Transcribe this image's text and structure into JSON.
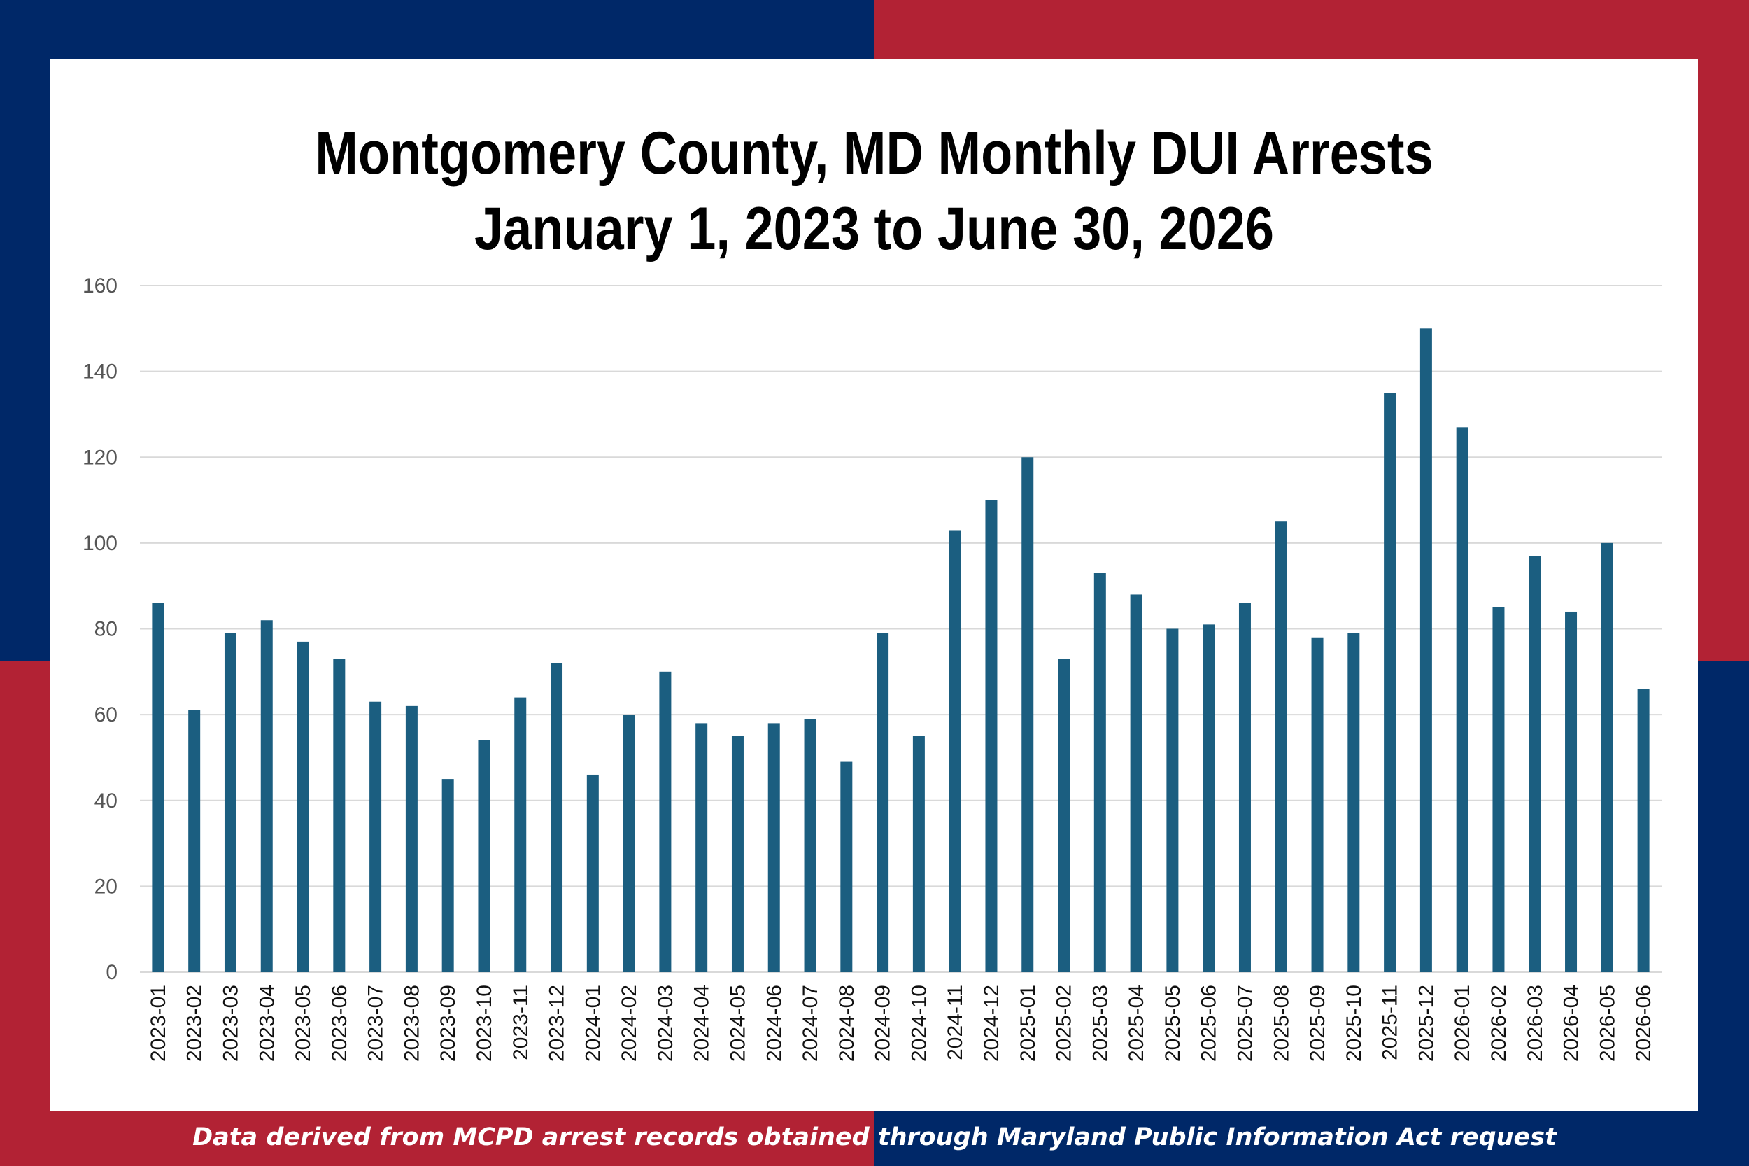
{
  "colors": {
    "navy": "#002868",
    "red": "#B22234",
    "bar": "#1B5E80",
    "grid": "#d9d9d9",
    "panel": "#ffffff"
  },
  "title_lines": [
    "Montgomery County, MD Monthly DUI Arrests",
    "January 1, 2023 to June 30, 2026"
  ],
  "footer": "Data derived from MCPD arrest records obtained through Maryland Public Information Act request",
  "chart_data": {
    "type": "bar",
    "title": "Montgomery County, MD Monthly DUI Arrests January 1, 2023 to June 30, 2026",
    "xlabel": "",
    "ylabel": "",
    "ylim": [
      0,
      160
    ],
    "yticks": [
      0,
      20,
      40,
      60,
      80,
      100,
      120,
      140,
      160
    ],
    "grid": true,
    "legend": "none",
    "categories": [
      "2023-01",
      "2023-02",
      "2023-03",
      "2023-04",
      "2023-05",
      "2023-06",
      "2023-07",
      "2023-08",
      "2023-09",
      "2023-10",
      "2023-11",
      "2023-12",
      "2024-01",
      "2024-02",
      "2024-03",
      "2024-04",
      "2024-05",
      "2024-06",
      "2024-07",
      "2024-08",
      "2024-09",
      "2024-10",
      "2024-11",
      "2024-12",
      "2025-01",
      "2025-02",
      "2025-03",
      "2025-04",
      "2025-05",
      "2025-06",
      "2025-07",
      "2025-08",
      "2025-09",
      "2025-10",
      "2025-11",
      "2025-12",
      "2026-01",
      "2026-02",
      "2026-03",
      "2026-04",
      "2026-05",
      "2026-06"
    ],
    "values": [
      86,
      61,
      79,
      82,
      77,
      73,
      63,
      62,
      45,
      54,
      64,
      72,
      46,
      60,
      70,
      58,
      55,
      58,
      59,
      49,
      79,
      55,
      103,
      110,
      120,
      73,
      93,
      88,
      80,
      81,
      86,
      105,
      78,
      79,
      135,
      150,
      127,
      85,
      97,
      84,
      100,
      66
    ]
  }
}
